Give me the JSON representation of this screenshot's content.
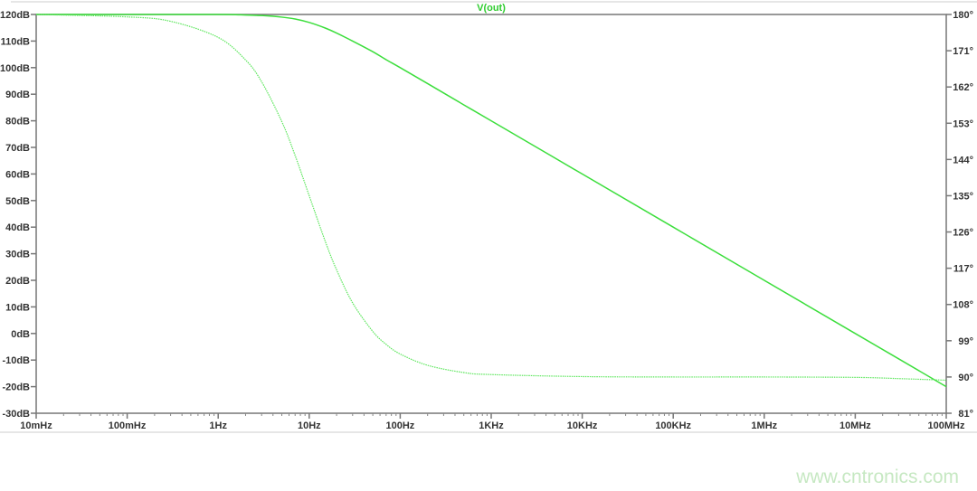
{
  "chart_data": {
    "type": "line",
    "title": "V(out)",
    "x_scale": "log",
    "xlim": [
      0.01,
      100000000
    ],
    "x_tick_values": [
      0.01,
      0.1,
      1,
      10,
      100,
      1000,
      10000,
      100000,
      1000000,
      10000000,
      100000000
    ],
    "x_tick_labels": [
      "10mHz",
      "100mHz",
      "1Hz",
      "10Hz",
      "100Hz",
      "1KHz",
      "10KHz",
      "100KHz",
      "1MHz",
      "10MHz",
      "100MHz"
    ],
    "y_left": {
      "ylim": [
        -30,
        120
      ],
      "tick_values": [
        120,
        110,
        100,
        90,
        80,
        70,
        60,
        50,
        40,
        30,
        20,
        10,
        0,
        -10,
        -20,
        -30
      ],
      "tick_labels": [
        "120dB",
        "110dB",
        "100dB",
        "90dB",
        "80dB",
        "70dB",
        "60dB",
        "50dB",
        "40dB",
        "30dB",
        "20dB",
        "10dB",
        "0dB",
        "-10dB",
        "-20dB",
        "-30dB"
      ]
    },
    "y_right": {
      "ylim": [
        81,
        180
      ],
      "tick_values": [
        180,
        171,
        162,
        153,
        144,
        135,
        126,
        117,
        108,
        99,
        90,
        81
      ],
      "tick_labels": [
        "180°",
        "171°",
        "162°",
        "153°",
        "144°",
        "135°",
        "126°",
        "117°",
        "108°",
        "99°",
        "90°",
        "81°"
      ]
    },
    "grid": false,
    "series": [
      {
        "name": "magnitude",
        "axis": "left",
        "style": "solid",
        "color": "#3cde3c",
        "x": [
          0.01,
          0.1,
          1,
          2,
          3,
          5,
          7,
          10,
          15,
          20,
          30,
          50,
          70,
          100,
          200,
          500,
          1000,
          10000,
          100000,
          1000000,
          10000000,
          100000000
        ],
        "y": [
          120,
          120,
          120,
          119.8,
          119.6,
          119,
          118.3,
          117,
          114.9,
          113,
          110,
          106,
          103,
          100,
          94,
          86,
          80,
          60,
          40,
          20,
          0,
          -20
        ]
      },
      {
        "name": "phase",
        "axis": "right",
        "style": "dotted",
        "color": "#5ce65c",
        "x": [
          0.01,
          0.1,
          0.3,
          1,
          2,
          3,
          5,
          7,
          10,
          15,
          20,
          30,
          50,
          70,
          100,
          200,
          500,
          1000,
          10000,
          100000,
          1000000,
          10000000,
          30000000,
          100000000
        ],
        "y": [
          180,
          179.4,
          178.3,
          174.3,
          168.7,
          163.3,
          153.4,
          145,
          135,
          123.7,
          116.6,
          108.4,
          101.3,
          98.1,
          95.7,
          92.9,
          91.1,
          90.6,
          90.1,
          90,
          90,
          89.9,
          89.6,
          89.2
        ]
      }
    ]
  },
  "colors": {
    "trace": "#3cde3c",
    "title": "#2ecc2e",
    "axis": "#555555"
  },
  "watermark": "www.cntronics.com"
}
